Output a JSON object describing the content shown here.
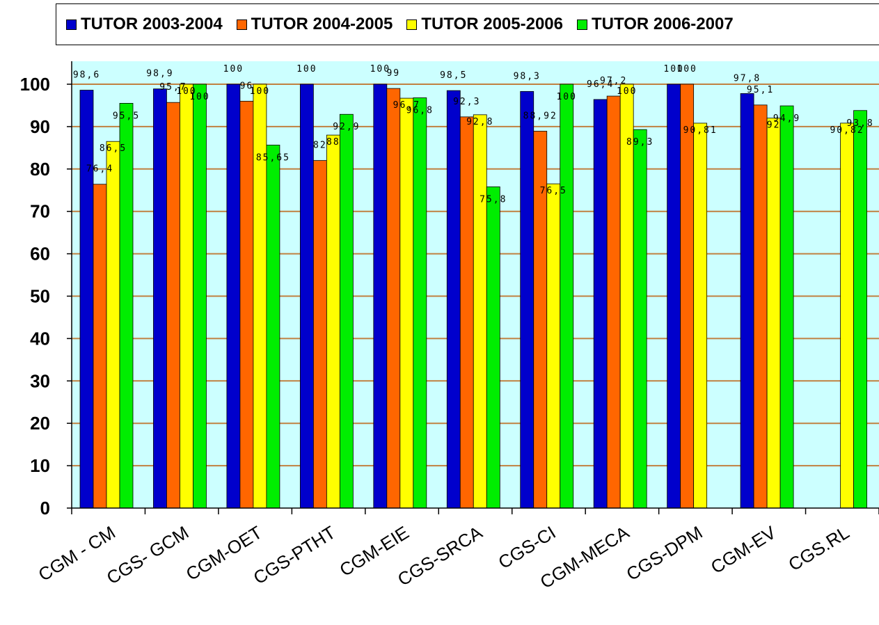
{
  "chart_data": {
    "type": "bar",
    "categories": [
      "CGM - CM",
      "CGS- GCM",
      "CGM-OET",
      "CGS-PTHT",
      "CGM-EIE",
      "CGS-SRCA",
      "CGS-CI",
      "CGM-MECA",
      "CGS-DPM",
      "CGM-EV",
      "CGS.RL"
    ],
    "series": [
      {
        "name": "TUTOR 2003-2004",
        "color": "#0000cc",
        "values": [
          98.6,
          98.9,
          100,
          100,
          100,
          98.5,
          98.3,
          96.4,
          100,
          97.8,
          null
        ]
      },
      {
        "name": "TUTOR 2004-2005",
        "color": "#ff6600",
        "values": [
          76.4,
          95.7,
          96,
          82,
          99,
          92.3,
          88.92,
          97.2,
          100,
          95.1,
          null
        ]
      },
      {
        "name": "TUTOR 2005-2006",
        "color": "#ffff00",
        "values": [
          86.5,
          100,
          100,
          88,
          96.7,
          92.8,
          76.5,
          100,
          90.81,
          92,
          90.82
        ]
      },
      {
        "name": "TUTOR 2006-2007",
        "color": "#00ee00",
        "values": [
          95.5,
          100,
          85.65,
          92.9,
          96.8,
          75.8,
          100,
          89.3,
          null,
          94.9,
          93.8
        ]
      }
    ],
    "data_labels": [
      [
        "98,6",
        "98,9",
        "100",
        "100",
        "100",
        "98,5",
        "98,3",
        "96,4",
        "100",
        "97,8",
        ""
      ],
      [
        "76,4",
        "95,7",
        "96",
        "82",
        "99",
        "92,3",
        "88,92",
        "97,2",
        "100",
        "95,1",
        ""
      ],
      [
        "86,5",
        "100",
        "100",
        "88",
        "96,7",
        "92,8",
        "76,5",
        "100",
        "90,81",
        "92",
        "90,82"
      ],
      [
        "95,5",
        "100",
        "85,65",
        "92,9",
        "96,8",
        "75,8",
        "100",
        "89,3",
        "",
        "94,9",
        "93,8"
      ]
    ],
    "yticks": [
      "0",
      "10",
      "20",
      "30",
      "40",
      "50",
      "60",
      "70",
      "80",
      "90",
      "100"
    ],
    "ylim": [
      0,
      100
    ],
    "grid": true,
    "legend_position": "top",
    "colors": {
      "plot_background": "#ccffff",
      "gridline": "#c08040"
    }
  }
}
